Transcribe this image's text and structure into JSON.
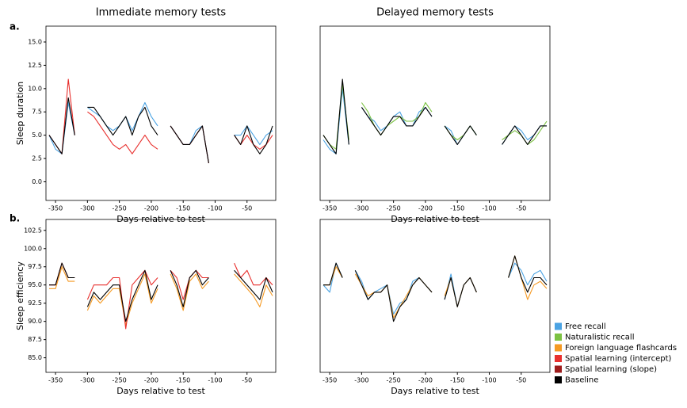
{
  "panel_labels": [
    "a.",
    "b."
  ],
  "legend": [
    {
      "name": "Free recall",
      "color": "#4ba3e3"
    },
    {
      "name": "Naturalistic recall",
      "color": "#7cc242"
    },
    {
      "name": "Foreign language flashcards",
      "color": "#f59a23"
    },
    {
      "name": "Spatial learning (intercept)",
      "color": "#e8302e"
    },
    {
      "name": "Spatial learning (slope)",
      "color": "#9e1b1b"
    },
    {
      "name": "Baseline",
      "color": "#000000"
    }
  ],
  "chart_data": [
    {
      "type": "line",
      "title": "Immediate memory tests",
      "ylabel": "Sleep duration",
      "xlabel": "Days relative to test",
      "x": [
        -360,
        -350,
        -340,
        -330,
        -320,
        -310,
        -300,
        -290,
        -280,
        -270,
        -260,
        -250,
        -240,
        -230,
        -220,
        -210,
        -200,
        -190,
        -180,
        -170,
        -160,
        -150,
        -140,
        -130,
        -120,
        -110,
        -100,
        -90,
        -80,
        -70,
        -60,
        -50,
        -40,
        -30,
        -20,
        -10
      ],
      "xlim": [
        -365,
        -5
      ],
      "xticks": [
        -350,
        -300,
        -250,
        -200,
        -150,
        -100,
        -50
      ],
      "ylim": [
        -2,
        16.7
      ],
      "yticks": [
        {
          "value": 0,
          "label": "0.0"
        },
        {
          "value": 2.5,
          "label": "2.5"
        },
        {
          "value": 5,
          "label": "5.0"
        },
        {
          "value": 7.5,
          "label": "7.5"
        },
        {
          "value": 10,
          "label": "10.0"
        },
        {
          "value": 12.5,
          "label": "12.5"
        },
        {
          "value": 15,
          "label": "15.0"
        }
      ],
      "series": [
        {
          "color": "#4ba3e3",
          "values": [
            5,
            3.5,
            3,
            8.5,
            5,
            null,
            8,
            7.5,
            7,
            6,
            5.5,
            6,
            7,
            5.5,
            7,
            8.5,
            7,
            6,
            null,
            6,
            5,
            4,
            4,
            5.5,
            6,
            2,
            null,
            null,
            null,
            5,
            5,
            6,
            5,
            4,
            5,
            5.5
          ]
        },
        {
          "color": "#e8302e",
          "values": [
            5,
            4,
            3,
            11,
            5,
            null,
            7.5,
            7,
            6,
            5,
            4,
            3.5,
            4,
            3,
            4,
            5,
            4,
            3.5,
            null,
            6,
            5,
            4,
            4,
            5,
            6,
            2,
            null,
            null,
            null,
            5,
            4,
            5,
            4,
            3.5,
            4,
            5
          ]
        },
        {
          "color": "#000000",
          "values": [
            5,
            4,
            3,
            9,
            5,
            null,
            8,
            8,
            7,
            6,
            5,
            6,
            7,
            5,
            7,
            8,
            6,
            5,
            null,
            6,
            5,
            4,
            4,
            5,
            6,
            2,
            null,
            null,
            null,
            5,
            4,
            6,
            4,
            3,
            4,
            6
          ]
        }
      ]
    },
    {
      "type": "line",
      "title": "Delayed memory tests",
      "xlabel": "Days relative to test",
      "x": [
        -360,
        -350,
        -340,
        -330,
        -320,
        -310,
        -300,
        -290,
        -280,
        -270,
        -260,
        -250,
        -240,
        -230,
        -220,
        -210,
        -200,
        -190,
        -180,
        -170,
        -160,
        -150,
        -140,
        -130,
        -120,
        -110,
        -100,
        -90,
        -80,
        -70,
        -60,
        -50,
        -40,
        -30,
        -20,
        -10
      ],
      "xlim": [
        -365,
        -5
      ],
      "xticks": [
        -350,
        -300,
        -250,
        -200,
        -150,
        -100,
        -50
      ],
      "ylim": [
        -2,
        16.7
      ],
      "series": [
        {
          "color": "#4ba3e3",
          "values": [
            4.5,
            3.5,
            3,
            10,
            4,
            null,
            8,
            7,
            6.5,
            5.5,
            6,
            7,
            7.5,
            6,
            6,
            7.5,
            8,
            7,
            null,
            6,
            5.5,
            4,
            5,
            6,
            5,
            null,
            null,
            null,
            4,
            5,
            6,
            5.5,
            4.5,
            5,
            6,
            6
          ]
        },
        {
          "color": "#7cc242",
          "values": [
            5,
            4,
            3.5,
            10.5,
            4.5,
            null,
            8.5,
            7.5,
            6,
            5,
            6,
            6.5,
            7,
            6.5,
            6.5,
            7,
            8.5,
            7.5,
            null,
            6,
            5,
            4.5,
            5,
            6,
            5,
            null,
            null,
            null,
            4.5,
            5,
            5.5,
            5,
            4,
            4.5,
            5.5,
            6.5
          ]
        },
        {
          "color": "#000000",
          "values": [
            5,
            4,
            3,
            11,
            4,
            null,
            8,
            7,
            6,
            5,
            6,
            7,
            7,
            6,
            6,
            7,
            8,
            7,
            null,
            6,
            5,
            4,
            5,
            6,
            5,
            null,
            null,
            null,
            4,
            5,
            6,
            5,
            4,
            5,
            6,
            6
          ]
        }
      ]
    },
    {
      "type": "line",
      "ylabel": "Sleep efficiency",
      "xlabel": "Days relative to test",
      "x": [
        -360,
        -350,
        -340,
        -330,
        -320,
        -310,
        -300,
        -290,
        -280,
        -270,
        -260,
        -250,
        -240,
        -230,
        -220,
        -210,
        -200,
        -190,
        -180,
        -170,
        -160,
        -150,
        -140,
        -130,
        -120,
        -110,
        -100,
        -90,
        -80,
        -70,
        -60,
        -50,
        -40,
        -30,
        -20,
        -10
      ],
      "xlim": [
        -365,
        -5
      ],
      "xticks": [
        -350,
        -300,
        -250,
        -200,
        -150,
        -100,
        -50
      ],
      "ylim": [
        83,
        104
      ],
      "yticks": [
        {
          "value": 85,
          "label": "85.0"
        },
        {
          "value": 87.5,
          "label": "87.5"
        },
        {
          "value": 90,
          "label": "90.0"
        },
        {
          "value": 92.5,
          "label": "92.5"
        },
        {
          "value": 95,
          "label": "95.0"
        },
        {
          "value": 97.5,
          "label": "97.5"
        },
        {
          "value": 100,
          "label": "100.0"
        },
        {
          "value": 102.5,
          "label": "102.5"
        }
      ],
      "series": [
        {
          "color": "#f59a23",
          "values": [
            94.5,
            94.5,
            97.5,
            95.5,
            95.5,
            null,
            91.5,
            93.5,
            92.5,
            93.5,
            94.5,
            94.5,
            89.5,
            92.5,
            94.5,
            96.5,
            92.5,
            94.5,
            null,
            96.5,
            94.5,
            91.5,
            95.5,
            96.5,
            94.5,
            95.5,
            null,
            null,
            null,
            96.5,
            95.5,
            94.5,
            93.5,
            92,
            95,
            93.5
          ]
        },
        {
          "color": "#e8302e",
          "values": [
            95,
            95,
            98,
            96,
            96,
            null,
            93,
            95,
            95,
            95,
            96,
            96,
            89,
            95,
            96,
            97,
            95,
            96,
            null,
            97,
            96,
            93,
            96,
            97,
            96,
            96,
            null,
            null,
            null,
            98,
            96,
            97,
            95,
            95,
            96,
            95
          ]
        },
        {
          "color": "#000000",
          "values": [
            95,
            95,
            98,
            96,
            96,
            null,
            92,
            94,
            93,
            94,
            95,
            95,
            90,
            93,
            95,
            97,
            93,
            95,
            null,
            97,
            95,
            92,
            96,
            97,
            95,
            96,
            null,
            null,
            null,
            97,
            96,
            95,
            94,
            93,
            96,
            94
          ]
        }
      ]
    },
    {
      "type": "line",
      "xlabel": "Days relative to test",
      "x": [
        -360,
        -350,
        -340,
        -330,
        -320,
        -310,
        -300,
        -290,
        -280,
        -270,
        -260,
        -250,
        -240,
        -230,
        -220,
        -210,
        -200,
        -190,
        -180,
        -170,
        -160,
        -150,
        -140,
        -130,
        -120,
        -110,
        -100,
        -90,
        -80,
        -70,
        -60,
        -50,
        -40,
        -30,
        -20,
        -10
      ],
      "xlim": [
        -365,
        -5
      ],
      "xticks": [
        -350,
        -300,
        -250,
        -200,
        -150,
        -100,
        -50
      ],
      "ylim": [
        83,
        104
      ],
      "series": [
        {
          "color": "#4ba3e3",
          "values": [
            95,
            94,
            98,
            96,
            null,
            97,
            95.5,
            93,
            94,
            94.5,
            95,
            91,
            92.5,
            93,
            95.5,
            96,
            95,
            94,
            null,
            93,
            96.5,
            92,
            95,
            96,
            94,
            null,
            null,
            null,
            null,
            96,
            98,
            97,
            95,
            96.5,
            97,
            95.5
          ]
        },
        {
          "color": "#f59a23",
          "values": [
            95,
            95,
            97.5,
            96,
            null,
            96.5,
            95,
            93.5,
            94,
            94,
            95,
            90.5,
            92,
            93.5,
            95,
            96,
            95,
            94,
            null,
            93.5,
            96,
            92,
            95,
            96,
            94,
            null,
            null,
            null,
            null,
            96,
            99,
            96,
            93,
            95,
            95.5,
            94.5
          ]
        },
        {
          "color": "#000000",
          "values": [
            95,
            95,
            98,
            96,
            null,
            97,
            95,
            93,
            94,
            94,
            95,
            90,
            92,
            93,
            95,
            96,
            95,
            94,
            null,
            93,
            96,
            92,
            95,
            96,
            94,
            null,
            null,
            null,
            null,
            96,
            99,
            96,
            94,
            96,
            96,
            95
          ]
        }
      ]
    }
  ]
}
